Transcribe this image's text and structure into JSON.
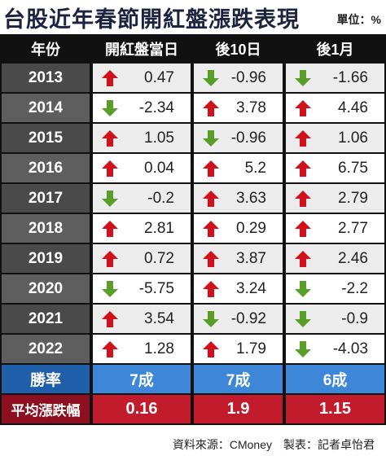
{
  "header": {
    "title": "台股近年春節開紅盤漲跌表現",
    "unit": "單位：%"
  },
  "table": {
    "columns": [
      "年份",
      "開紅盤當日",
      "後10日",
      "後1月"
    ],
    "rows": [
      [
        "2013",
        0.47,
        -0.96,
        -1.66
      ],
      [
        "2014",
        -2.34,
        3.78,
        4.46
      ],
      [
        "2015",
        1.05,
        -0.96,
        1.06
      ],
      [
        "2016",
        0.04,
        5.2,
        6.75
      ],
      [
        "2017",
        -0.2,
        3.63,
        2.79
      ],
      [
        "2018",
        2.81,
        0.29,
        2.77
      ],
      [
        "2019",
        0.72,
        3.87,
        2.46
      ],
      [
        "2020",
        -5.75,
        3.24,
        -2.2
      ],
      [
        "2021",
        3.54,
        -0.92,
        -0.9
      ],
      [
        "2022",
        1.28,
        1.79,
        -4.03
      ]
    ],
    "win_rate": [
      "勝率",
      "7成",
      "7成",
      "6成"
    ],
    "average": [
      "平均漲跌幅",
      0.16,
      1.9,
      1.15
    ]
  },
  "footer": "資料來源：CMoney　製表：記者卓怡君"
}
